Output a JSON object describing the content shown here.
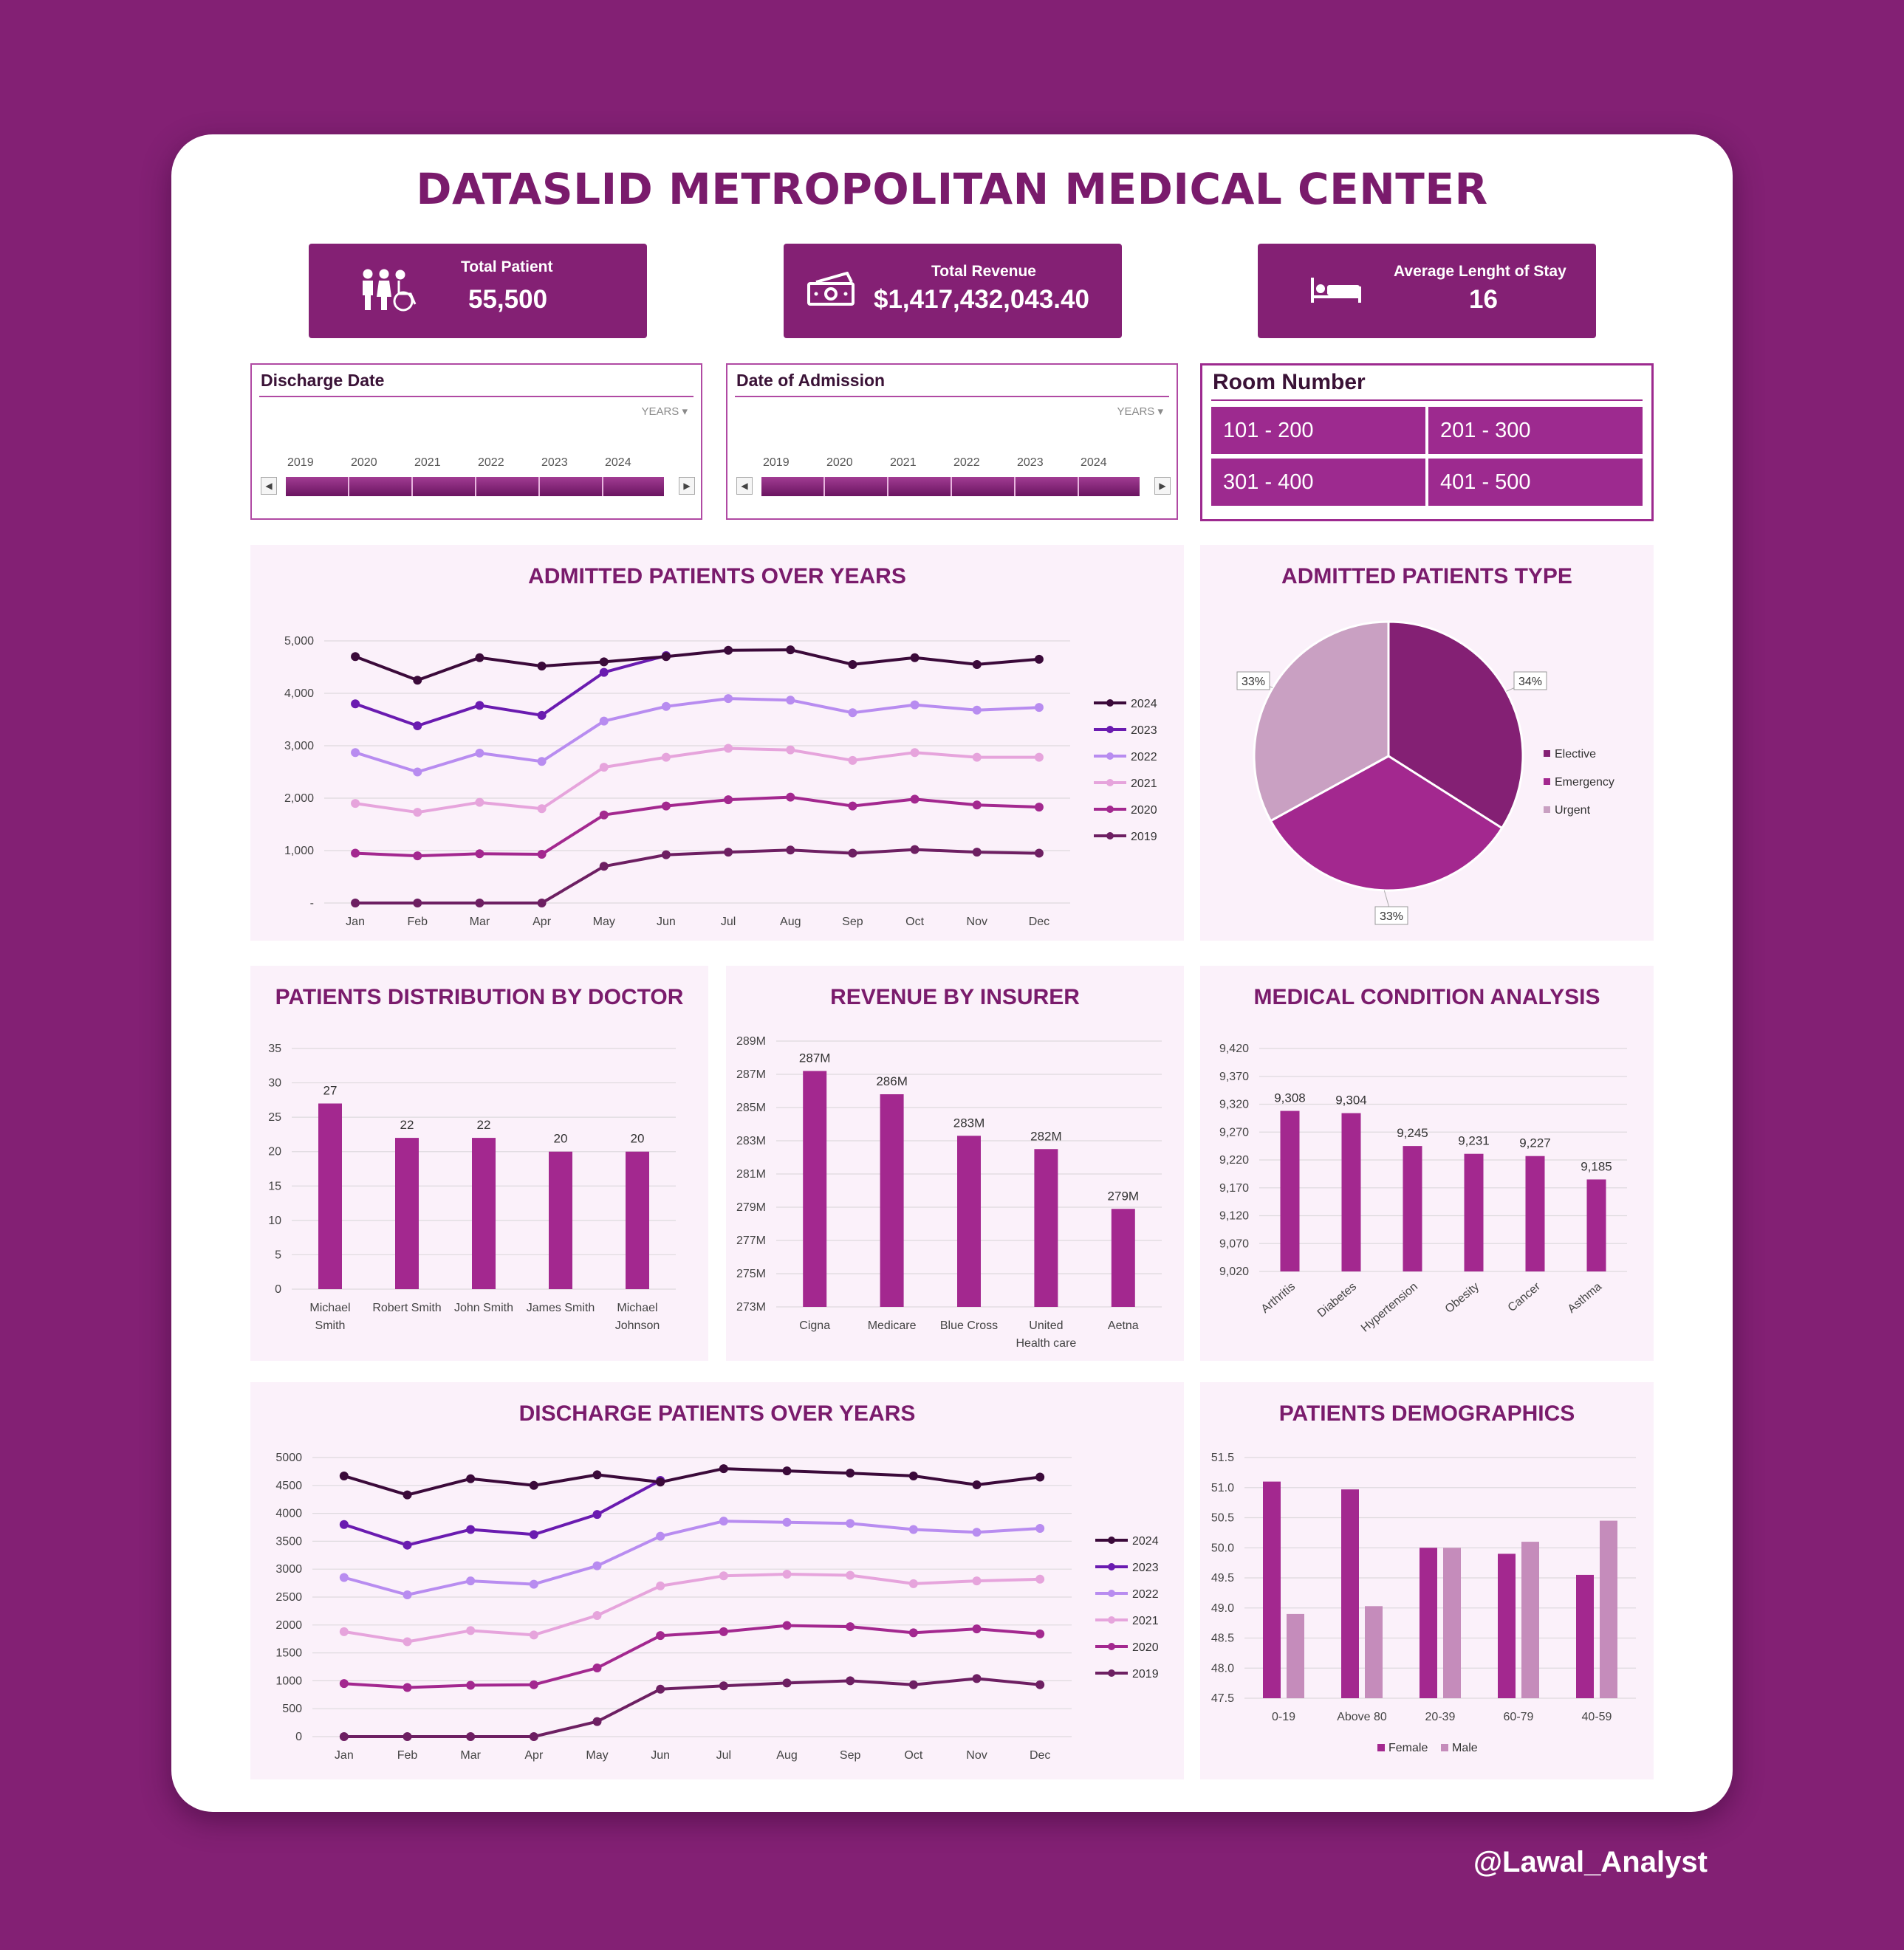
{
  "title": "DATASLID METROPOLITAN MEDICAL CENTER",
  "kpis": {
    "patients": {
      "label": "Total Patient",
      "value": "55,500",
      "icon": "patients-icon"
    },
    "revenue": {
      "label": "Total Revenue",
      "value": "$1,417,432,043.40",
      "icon": "money-icon"
    },
    "stay": {
      "label": "Average Lenght of Stay",
      "value": "16",
      "icon": "bed-icon"
    }
  },
  "slicers": {
    "discharge": {
      "title": "Discharge Date",
      "period": "YEARS",
      "years": [
        "2019",
        "2020",
        "2021",
        "2022",
        "2023",
        "2024"
      ]
    },
    "admission": {
      "title": "Date of Admission",
      "period": "YEARS",
      "years": [
        "2019",
        "2020",
        "2021",
        "2022",
        "2023",
        "2024"
      ]
    }
  },
  "room": {
    "title": "Room Number",
    "options": [
      "101 - 200",
      "201 - 300",
      "301 - 400",
      "401 - 500"
    ]
  },
  "colors": {
    "primary": "#842074",
    "accent": "#9d2a8f",
    "panel": "#fbf1fa"
  },
  "watermark": "@Lawal_Analyst",
  "chart_data": [
    {
      "id": "admitted",
      "type": "line",
      "title": "ADMITTED PATIENTS OVER YEARS",
      "categories": [
        "Jan",
        "Feb",
        "Mar",
        "Apr",
        "May",
        "Jun",
        "Jul",
        "Aug",
        "Sep",
        "Oct",
        "Nov",
        "Dec"
      ],
      "ylim": [
        0,
        5000
      ],
      "yticks": [
        "-",
        "1,000",
        "2,000",
        "3,000",
        "4,000",
        "5,000"
      ],
      "series": [
        {
          "name": "2024",
          "color": "#3b0a3a",
          "values": [
            4700,
            4250,
            4680,
            4520,
            4600,
            4700,
            4820,
            4830,
            4550,
            4680,
            4550,
            4650
          ]
        },
        {
          "name": "2023",
          "color": "#6a1bb0",
          "values": [
            3800,
            3380,
            3770,
            3580,
            4400,
            4720,
            null,
            null,
            null,
            null,
            null,
            null
          ]
        },
        {
          "name": "2022",
          "color": "#b88cf0",
          "values": [
            2870,
            2500,
            2860,
            2700,
            3470,
            3750,
            3900,
            3870,
            3630,
            3780,
            3680,
            3730
          ]
        },
        {
          "name": "2021",
          "color": "#e6a4dc",
          "values": [
            1900,
            1730,
            1920,
            1800,
            2590,
            2780,
            2950,
            2920,
            2720,
            2870,
            2780,
            2780
          ]
        },
        {
          "name": "2020",
          "color": "#a3288f",
          "values": [
            950,
            900,
            940,
            930,
            1680,
            1850,
            1970,
            2020,
            1850,
            1980,
            1870,
            1830
          ]
        },
        {
          "name": "2019",
          "color": "#6d1f62",
          "values": [
            0,
            0,
            0,
            0,
            700,
            920,
            970,
            1010,
            950,
            1020,
            970,
            950
          ]
        }
      ]
    },
    {
      "id": "types",
      "type": "pie",
      "title": "ADMITTED PATIENTS TYPE",
      "categories": [
        "Elective",
        "Emergency",
        "Urgent"
      ],
      "values": [
        34,
        33,
        33
      ],
      "labels": [
        "34%",
        "33%",
        "33%"
      ],
      "colors": [
        "#842074",
        "#a3288f",
        "#c9a0c2"
      ]
    },
    {
      "id": "doctor",
      "type": "bar",
      "title": "PATIENTS DISTRIBUTION BY DOCTOR",
      "categories": [
        [
          "Michael",
          "Smith"
        ],
        [
          "Robert Smith"
        ],
        [
          "John Smith"
        ],
        [
          "James Smith"
        ],
        [
          "Michael",
          "Johnson"
        ]
      ],
      "values": [
        27,
        22,
        22,
        20,
        20
      ],
      "value_labels": [
        "27",
        "22",
        "22",
        "20",
        "20"
      ],
      "ylim": [
        0,
        35
      ],
      "yticks": [
        "0",
        "5",
        "10",
        "15",
        "20",
        "25",
        "30",
        "35"
      ]
    },
    {
      "id": "insurer",
      "type": "bar",
      "title": "REVENUE BY INSURER",
      "categories": [
        [
          "Cigna"
        ],
        [
          "Medicare"
        ],
        [
          "Blue Cross"
        ],
        [
          "United",
          "Health care"
        ],
        [
          "Aetna"
        ]
      ],
      "values": [
        287.2,
        285.8,
        283.3,
        282.5,
        278.9
      ],
      "value_labels": [
        "287M",
        "286M",
        "283M",
        "282M",
        "279M"
      ],
      "ylim": [
        273,
        289
      ],
      "yticks": [
        "273M",
        "275M",
        "277M",
        "279M",
        "281M",
        "283M",
        "285M",
        "287M",
        "289M"
      ]
    },
    {
      "id": "condition",
      "type": "bar",
      "title": "MEDICAL CONDITION ANALYSIS",
      "categories": [
        "Arthritis",
        "Diabetes",
        "Hypertension",
        "Obesity",
        "Cancer",
        "Asthma"
      ],
      "values": [
        9308,
        9304,
        9245,
        9231,
        9227,
        9185
      ],
      "value_labels": [
        "9,308",
        "9,304",
        "9,245",
        "9,231",
        "9,227",
        "9,185"
      ],
      "ylim": [
        9020,
        9420
      ],
      "yticks": [
        "9,020",
        "9,070",
        "9,120",
        "9,170",
        "9,220",
        "9,270",
        "9,320",
        "9,370",
        "9,420"
      ]
    },
    {
      "id": "discharge",
      "type": "line",
      "title": "DISCHARGE PATIENTS OVER YEARS",
      "categories": [
        "Jan",
        "Feb",
        "Mar",
        "Apr",
        "May",
        "Jun",
        "Jul",
        "Aug",
        "Sep",
        "Oct",
        "Nov",
        "Dec"
      ],
      "ylim": [
        0,
        5000
      ],
      "yticks": [
        "0",
        "500",
        "1000",
        "1500",
        "2000",
        "2500",
        "3000",
        "3500",
        "4000",
        "4500",
        "5000"
      ],
      "series": [
        {
          "name": "2024",
          "color": "#3b0a3a",
          "values": [
            4670,
            4330,
            4620,
            4500,
            4690,
            4560,
            4800,
            4760,
            4720,
            4670,
            4510,
            4650
          ]
        },
        {
          "name": "2023",
          "color": "#6a1bb0",
          "values": [
            3800,
            3430,
            3710,
            3620,
            3980,
            4590,
            null,
            null,
            null,
            null,
            null,
            null
          ]
        },
        {
          "name": "2022",
          "color": "#b88cf0",
          "values": [
            2850,
            2540,
            2790,
            2730,
            3060,
            3590,
            3860,
            3840,
            3820,
            3710,
            3660,
            3730
          ]
        },
        {
          "name": "2021",
          "color": "#e6a4dc",
          "values": [
            1880,
            1700,
            1900,
            1820,
            2170,
            2700,
            2880,
            2910,
            2890,
            2740,
            2790,
            2820
          ]
        },
        {
          "name": "2020",
          "color": "#a3288f",
          "values": [
            950,
            880,
            920,
            930,
            1230,
            1810,
            1880,
            1990,
            1970,
            1860,
            1930,
            1840
          ]
        },
        {
          "name": "2019",
          "color": "#6d1f62",
          "values": [
            0,
            0,
            0,
            0,
            270,
            850,
            910,
            960,
            1000,
            930,
            1040,
            930
          ]
        }
      ]
    },
    {
      "id": "demographics",
      "type": "bar",
      "title": "PATIENTS DEMOGRAPHICS",
      "categories": [
        "0-19",
        "Above 80",
        "20-39",
        "60-79",
        "40-59"
      ],
      "ylim": [
        47.5,
        51.5
      ],
      "yticks": [
        "47.5",
        "48.0",
        "48.5",
        "49.0",
        "49.5",
        "50.0",
        "50.5",
        "51.0",
        "51.5"
      ],
      "series": [
        {
          "name": "Female",
          "color": "#a3288f",
          "values": [
            51.1,
            50.97,
            50.0,
            49.9,
            49.55
          ]
        },
        {
          "name": "Male",
          "color": "#c58cbb",
          "values": [
            48.9,
            49.03,
            50.0,
            50.1,
            50.45
          ]
        }
      ]
    }
  ]
}
